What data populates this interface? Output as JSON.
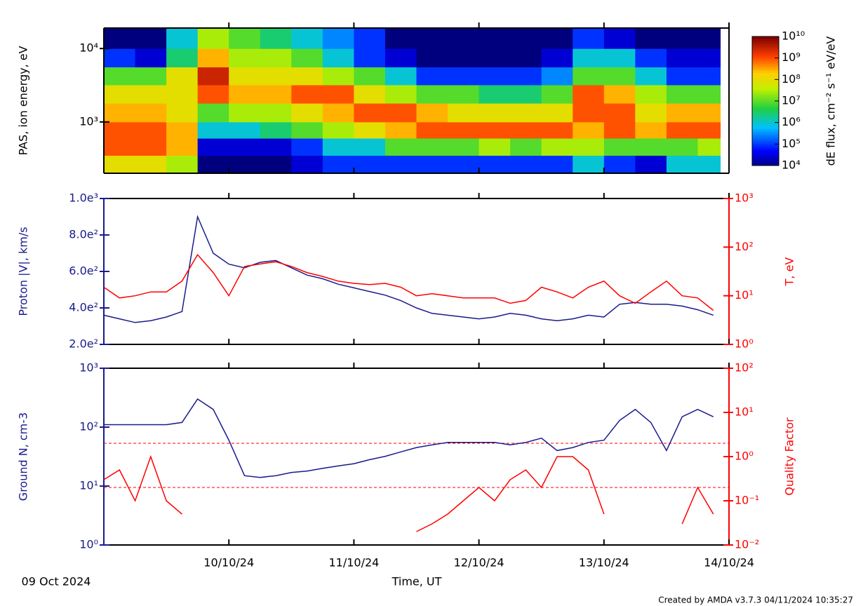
{
  "chart_data": [
    {
      "type": "heatmap",
      "ylabel": "PAS, ion energy, eV",
      "ylog": true,
      "xlim": [
        0,
        5
      ],
      "ylim": [
        200,
        19000
      ],
      "yticks": [
        {
          "value": 1000,
          "label": "10³"
        },
        {
          "value": 10000,
          "label": "10⁴"
        }
      ],
      "x_edges": [
        0,
        0.25,
        0.5,
        0.75,
        1,
        1.25,
        1.5,
        1.75,
        2,
        2.25,
        2.5,
        2.75,
        3,
        3.25,
        3.5,
        3.75,
        4,
        4.25,
        4.5,
        4.75,
        4.93
      ],
      "y_edges": [
        200,
        350,
        600,
        1000,
        1800,
        3200,
        5600,
        10000,
        19000
      ],
      "z": [
        [
          100000000.0,
          100000000.0,
          30000000.0,
          10000.0,
          10000.0,
          10000.0,
          30000.0,
          100000.0,
          100000.0,
          100000.0,
          100000.0,
          100000.0,
          100000.0,
          100000.0,
          100000.0,
          1000000.0,
          100000.0,
          30000.0,
          1000000.0,
          1000000.0
        ],
        [
          1000000000.0,
          1000000000.0,
          300000000.0,
          30000.0,
          30000.0,
          30000.0,
          100000.0,
          1000000.0,
          1000000.0,
          10000000.0,
          10000000.0,
          10000000.0,
          30000000.0,
          10000000.0,
          30000000.0,
          30000000.0,
          10000000.0,
          10000000.0,
          10000000.0,
          30000000.0
        ],
        [
          1000000000.0,
          1000000000.0,
          300000000.0,
          1000000.0,
          1000000.0,
          3000000.0,
          10000000.0,
          30000000.0,
          100000000.0,
          300000000.0,
          1000000000.0,
          1000000000.0,
          1000000000.0,
          1000000000.0,
          1000000000.0,
          300000000.0,
          1000000000.0,
          300000000.0,
          1000000000.0,
          1000000000.0
        ],
        [
          300000000.0,
          300000000.0,
          100000000.0,
          10000000.0,
          30000000.0,
          30000000.0,
          100000000.0,
          300000000.0,
          1000000000.0,
          1000000000.0,
          300000000.0,
          100000000.0,
          100000000.0,
          100000000.0,
          100000000.0,
          1000000000.0,
          1000000000.0,
          100000000.0,
          300000000.0,
          300000000.0
        ],
        [
          100000000.0,
          100000000.0,
          100000000.0,
          1000000000.0,
          300000000.0,
          300000000.0,
          1000000000.0,
          1000000000.0,
          100000000.0,
          30000000.0,
          10000000.0,
          10000000.0,
          3000000.0,
          3000000.0,
          10000000.0,
          1000000000.0,
          300000000.0,
          30000000.0,
          10000000.0,
          10000000.0
        ],
        [
          10000000.0,
          10000000.0,
          100000000.0,
          3000000000.0,
          100000000.0,
          100000000.0,
          100000000.0,
          30000000.0,
          10000000.0,
          1000000.0,
          100000.0,
          100000.0,
          100000.0,
          100000.0,
          300000.0,
          10000000.0,
          10000000.0,
          1000000.0,
          100000.0,
          100000.0
        ],
        [
          100000.0,
          30000.0,
          3000000.0,
          300000000.0,
          30000000.0,
          30000000.0,
          10000000.0,
          1000000.0,
          100000.0,
          30000.0,
          10000.0,
          10000.0,
          10000.0,
          10000.0,
          30000.0,
          1000000.0,
          1000000.0,
          100000.0,
          30000.0,
          30000.0
        ],
        [
          10000.0,
          10000.0,
          1000000.0,
          30000000.0,
          10000000.0,
          3000000.0,
          1000000.0,
          300000.0,
          100000.0,
          10000.0,
          10000.0,
          10000.0,
          10000.0,
          10000.0,
          10000.0,
          100000.0,
          30000.0,
          10000.0,
          10000.0,
          10000.0
        ]
      ],
      "colorbar_label": "dE flux, cm⁻² s⁻¹ eV/eV",
      "clim": [
        10000,
        10000000000
      ],
      "cticks": [
        {
          "value": 10000,
          "label": "10⁴"
        },
        {
          "value": 100000,
          "label": "10⁵"
        },
        {
          "value": 1000000,
          "label": "10⁶"
        },
        {
          "value": 10000000,
          "label": "10⁷"
        },
        {
          "value": 100000000,
          "label": "10⁸"
        },
        {
          "value": 1000000000,
          "label": "10⁹"
        },
        {
          "value": 10000000000,
          "label": "10¹⁰"
        }
      ]
    },
    {
      "type": "line",
      "ylabel": "Proton |V|, km/s",
      "y2label": "T, eV",
      "xlim": [
        0,
        5
      ],
      "ylim": [
        200,
        1000
      ],
      "y2lim": [
        1,
        1000
      ],
      "y2log": true,
      "yticks": [
        {
          "value": 200,
          "label": "2.0e²"
        },
        {
          "value": 400,
          "label": "4.0e²"
        },
        {
          "value": 600,
          "label": "6.0e²"
        },
        {
          "value": 800,
          "label": "8.0e²"
        },
        {
          "value": 1000,
          "label": "1.0e³"
        }
      ],
      "y2ticks": [
        {
          "value": 1,
          "label": "10⁰"
        },
        {
          "value": 10,
          "label": "10¹"
        },
        {
          "value": 100,
          "label": "10²"
        },
        {
          "value": 1000,
          "label": "10³"
        }
      ],
      "x": [
        0,
        0.125,
        0.25,
        0.375,
        0.5,
        0.625,
        0.75,
        0.875,
        1,
        1.125,
        1.25,
        1.375,
        1.5,
        1.625,
        1.75,
        1.875,
        2,
        2.125,
        2.25,
        2.375,
        2.5,
        2.625,
        2.75,
        2.875,
        3,
        3.125,
        3.25,
        3.375,
        3.5,
        3.625,
        3.75,
        3.875,
        4,
        4.125,
        4.25,
        4.375,
        4.5,
        4.625,
        4.75,
        4.875
      ],
      "series": [
        {
          "color": "#1a1a8c",
          "axis": "y",
          "values": [
            360,
            340,
            320,
            330,
            350,
            380,
            900,
            700,
            640,
            620,
            650,
            660,
            620,
            580,
            560,
            530,
            510,
            490,
            470,
            440,
            400,
            370,
            360,
            350,
            340,
            350,
            370,
            360,
            340,
            330,
            340,
            360,
            350,
            420,
            430,
            420,
            420,
            410,
            390,
            360
          ]
        },
        {
          "color": "#ff0000",
          "axis": "y2",
          "values": [
            15,
            9,
            10,
            12,
            12,
            20,
            70,
            30,
            10,
            40,
            45,
            50,
            40,
            30,
            25,
            20,
            18,
            17,
            18,
            15,
            10,
            11,
            10,
            9,
            9,
            9,
            7,
            8,
            15,
            12,
            9,
            15,
            20,
            10,
            7,
            12,
            20,
            10,
            9,
            5
          ]
        }
      ]
    },
    {
      "type": "line",
      "ylabel": "Ground N, cm-3",
      "y2label": "Quality Factor",
      "xlabel": "Time, UT",
      "xlim": [
        0,
        5
      ],
      "ylim": [
        1,
        1000
      ],
      "ylog": true,
      "y2lim": [
        0.01,
        100
      ],
      "y2log": true,
      "yticks": [
        {
          "value": 1,
          "label": "10⁰"
        },
        {
          "value": 10,
          "label": "10¹"
        },
        {
          "value": 100,
          "label": "10²"
        },
        {
          "value": 1000,
          "label": "10³"
        }
      ],
      "y2ticks": [
        {
          "value": 0.01,
          "label": "10⁻²"
        },
        {
          "value": 0.1,
          "label": "10⁻¹"
        },
        {
          "value": 1,
          "label": "10⁰"
        },
        {
          "value": 10,
          "label": "10¹"
        },
        {
          "value": 100,
          "label": "10²"
        }
      ],
      "xticks": [
        {
          "value": 1,
          "label": "10/10/24"
        },
        {
          "value": 2,
          "label": "11/10/24"
        },
        {
          "value": 3,
          "label": "12/10/24"
        },
        {
          "value": 4,
          "label": "13/10/24"
        },
        {
          "value": 5,
          "label": "14/10/24"
        }
      ],
      "reference_lines": [
        2,
        0.2
      ],
      "x": [
        0,
        0.125,
        0.25,
        0.375,
        0.5,
        0.625,
        0.75,
        0.875,
        1,
        1.125,
        1.25,
        1.375,
        1.5,
        1.625,
        1.75,
        1.875,
        2,
        2.125,
        2.25,
        2.375,
        2.5,
        2.625,
        2.75,
        2.875,
        3,
        3.125,
        3.25,
        3.375,
        3.5,
        3.625,
        3.75,
        3.875,
        4,
        4.125,
        4.25,
        4.375,
        4.5,
        4.625,
        4.75,
        4.875
      ],
      "series": [
        {
          "color": "#1a1a8c",
          "axis": "y",
          "values": [
            110,
            110,
            110,
            110,
            110,
            120,
            300,
            200,
            60,
            15,
            14,
            15,
            17,
            18,
            20,
            22,
            24,
            28,
            32,
            38,
            45,
            50,
            55,
            55,
            55,
            55,
            50,
            55,
            65,
            40,
            45,
            55,
            60,
            130,
            200,
            120,
            40,
            150,
            200,
            150
          ]
        },
        {
          "color": "#ff0000",
          "axis": "y2",
          "values": [
            0.3,
            0.5,
            0.1,
            1,
            0.1,
            0.05,
            null,
            null,
            null,
            null,
            null,
            null,
            null,
            null,
            null,
            null,
            null,
            null,
            null,
            null,
            0.02,
            0.03,
            0.05,
            0.1,
            0.2,
            0.1,
            0.3,
            0.5,
            0.2,
            1,
            1,
            0.5,
            0.05,
            null,
            null,
            null,
            null,
            0.03,
            0.2,
            0.05
          ]
        }
      ],
      "annotations": [
        "09 Oct 2024",
        "Created by AMDA v3.7.3 04/11/2024 10:35:27"
      ]
    }
  ]
}
